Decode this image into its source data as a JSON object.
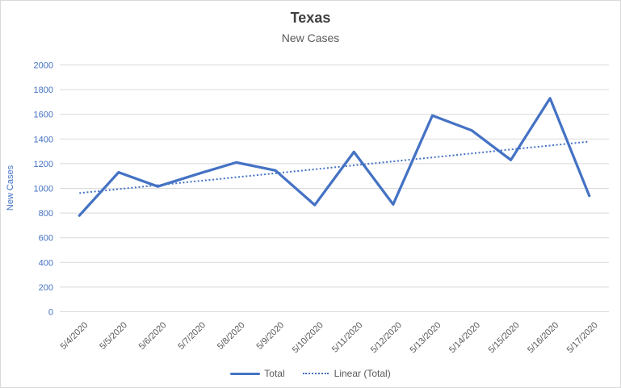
{
  "chart": {
    "title": "Texas",
    "subtitle": "New Cases",
    "legend": {
      "total_label": "Total",
      "trend_label": "Linear (Total)"
    },
    "colors": {
      "accent": "#4472c4",
      "gridline": "#d9d9d9",
      "axis_text": "#595959",
      "y_axis_text": "#4472c4",
      "title_text": "#404040",
      "subtitle_text": "#595959"
    }
  },
  "chart_data": {
    "type": "line",
    "title": "Texas",
    "subtitle": "New Cases",
    "categories": [
      "5/4/2020",
      "5/5/2020",
      "5/6/2020",
      "5/7/2020",
      "5/8/2020",
      "5/9/2020",
      "5/10/2020",
      "5/11/2020",
      "5/12/2020",
      "5/13/2020",
      "5/14/2020",
      "5/15/2020",
      "5/16/2020",
      "5/17/2020"
    ],
    "series": [
      {
        "name": "Total",
        "values": [
          780,
          1130,
          1015,
          1115,
          1210,
          1145,
          865,
          1295,
          870,
          1590,
          1470,
          1230,
          1730,
          940
        ]
      }
    ],
    "trendline": {
      "name": "Linear (Total)",
      "type": "linear",
      "applies_to": "Total"
    },
    "xlabel": "",
    "ylabel": "New Cases",
    "ylim": [
      0,
      2000
    ],
    "ytick_step": 200,
    "grid": "horizontal",
    "legend_position": "bottom"
  }
}
